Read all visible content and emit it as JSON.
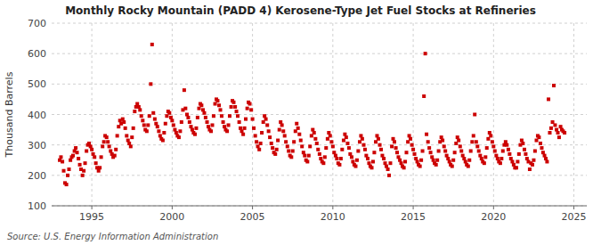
{
  "chart_data": {
    "type": "scatter",
    "title": "Monthly Rocky Mountain (PADD 4) Kerosene-Type Jet Fuel Stocks at Refineries",
    "ylabel": "Thousand Barrels",
    "source": "Source: U.S. Energy Information Administration",
    "color": "#cc0000",
    "marker": "square",
    "grid": true,
    "xlim": [
      1992.5,
      2025.8
    ],
    "ylim": [
      100,
      700
    ],
    "xticks": [
      1995,
      2000,
      2005,
      2010,
      2015,
      2020,
      2025
    ],
    "yticks": [
      100,
      200,
      300,
      400,
      500,
      600,
      700
    ],
    "x": [
      1993.0,
      1993.08,
      1993.17,
      1993.25,
      1993.33,
      1993.42,
      1993.5,
      1993.58,
      1993.67,
      1993.75,
      1993.83,
      1993.92,
      1994.0,
      1994.08,
      1994.17,
      1994.25,
      1994.33,
      1994.42,
      1994.5,
      1994.58,
      1994.67,
      1994.75,
      1994.83,
      1994.92,
      1995.0,
      1995.08,
      1995.17,
      1995.25,
      1995.33,
      1995.42,
      1995.5,
      1995.58,
      1995.67,
      1995.75,
      1995.83,
      1995.92,
      1996.0,
      1996.08,
      1996.17,
      1996.25,
      1996.33,
      1996.42,
      1996.5,
      1996.58,
      1996.67,
      1996.75,
      1996.83,
      1996.92,
      1997.0,
      1997.08,
      1997.17,
      1997.25,
      1997.33,
      1997.42,
      1997.5,
      1997.58,
      1997.67,
      1997.75,
      1997.83,
      1997.92,
      1998.0,
      1998.08,
      1998.17,
      1998.25,
      1998.33,
      1998.42,
      1998.5,
      1998.58,
      1998.67,
      1998.75,
      1998.83,
      1998.92,
      1999.0,
      1999.08,
      1999.17,
      1999.25,
      1999.33,
      1999.42,
      1999.5,
      1999.58,
      1999.67,
      1999.75,
      1999.83,
      1999.92,
      2000.0,
      2000.08,
      2000.17,
      2000.25,
      2000.33,
      2000.42,
      2000.5,
      2000.58,
      2000.67,
      2000.75,
      2000.83,
      2000.92,
      2001.0,
      2001.08,
      2001.17,
      2001.25,
      2001.33,
      2001.42,
      2001.5,
      2001.58,
      2001.67,
      2001.75,
      2001.83,
      2001.92,
      2002.0,
      2002.08,
      2002.17,
      2002.25,
      2002.33,
      2002.42,
      2002.5,
      2002.58,
      2002.67,
      2002.75,
      2002.83,
      2002.92,
      2003.0,
      2003.08,
      2003.17,
      2003.25,
      2003.33,
      2003.42,
      2003.5,
      2003.58,
      2003.67,
      2003.75,
      2003.83,
      2003.92,
      2004.0,
      2004.08,
      2004.17,
      2004.25,
      2004.33,
      2004.42,
      2004.5,
      2004.58,
      2004.67,
      2004.75,
      2004.83,
      2004.92,
      2005.0,
      2005.08,
      2005.17,
      2005.25,
      2005.33,
      2005.42,
      2005.5,
      2005.58,
      2005.67,
      2005.75,
      2005.83,
      2005.92,
      2006.0,
      2006.08,
      2006.17,
      2006.25,
      2006.33,
      2006.42,
      2006.5,
      2006.58,
      2006.67,
      2006.75,
      2006.83,
      2006.92,
      2007.0,
      2007.08,
      2007.17,
      2007.25,
      2007.33,
      2007.42,
      2007.5,
      2007.58,
      2007.67,
      2007.75,
      2007.83,
      2007.92,
      2008.0,
      2008.08,
      2008.17,
      2008.25,
      2008.33,
      2008.42,
      2008.5,
      2008.58,
      2008.67,
      2008.75,
      2008.83,
      2008.92,
      2009.0,
      2009.08,
      2009.17,
      2009.25,
      2009.33,
      2009.42,
      2009.5,
      2009.58,
      2009.67,
      2009.75,
      2009.83,
      2009.92,
      2010.0,
      2010.08,
      2010.17,
      2010.25,
      2010.33,
      2010.42,
      2010.5,
      2010.58,
      2010.67,
      2010.75,
      2010.83,
      2010.92,
      2011.0,
      2011.08,
      2011.17,
      2011.25,
      2011.33,
      2011.42,
      2011.5,
      2011.58,
      2011.67,
      2011.75,
      2011.83,
      2011.92,
      2012.0,
      2012.08,
      2012.17,
      2012.25,
      2012.33,
      2012.42,
      2012.5,
      2012.58,
      2012.67,
      2012.75,
      2012.83,
      2012.92,
      2013.0,
      2013.08,
      2013.17,
      2013.25,
      2013.33,
      2013.42,
      2013.5,
      2013.58,
      2013.67,
      2013.75,
      2013.83,
      2013.92,
      2014.0,
      2014.08,
      2014.17,
      2014.25,
      2014.33,
      2014.42,
      2014.5,
      2014.58,
      2014.67,
      2014.75,
      2014.83,
      2014.92,
      2015.0,
      2015.08,
      2015.17,
      2015.25,
      2015.33,
      2015.42,
      2015.5,
      2015.58,
      2015.67,
      2015.75,
      2015.83,
      2015.92,
      2016.0,
      2016.08,
      2016.17,
      2016.25,
      2016.33,
      2016.42,
      2016.5,
      2016.58,
      2016.67,
      2016.75,
      2016.83,
      2016.92,
      2017.0,
      2017.08,
      2017.17,
      2017.25,
      2017.33,
      2017.42,
      2017.5,
      2017.58,
      2017.67,
      2017.75,
      2017.83,
      2017.92,
      2018.0,
      2018.08,
      2018.17,
      2018.25,
      2018.33,
      2018.42,
      2018.5,
      2018.58,
      2018.67,
      2018.75,
      2018.83,
      2018.92,
      2019.0,
      2019.08,
      2019.17,
      2019.25,
      2019.33,
      2019.42,
      2019.5,
      2019.58,
      2019.67,
      2019.75,
      2019.83,
      2019.92,
      2020.0,
      2020.08,
      2020.17,
      2020.25,
      2020.33,
      2020.42,
      2020.5,
      2020.58,
      2020.67,
      2020.75,
      2020.83,
      2020.92,
      2021.0,
      2021.08,
      2021.17,
      2021.25,
      2021.33,
      2021.42,
      2021.5,
      2021.58,
      2021.67,
      2021.75,
      2021.83,
      2021.92,
      2022.0,
      2022.08,
      2022.17,
      2022.25,
      2022.33,
      2022.42,
      2022.5,
      2022.58,
      2022.67,
      2022.75,
      2022.83,
      2022.92,
      2023.0,
      2023.08,
      2023.17,
      2023.25,
      2023.33,
      2023.42,
      2023.5,
      2023.58,
      2023.67,
      2023.75,
      2023.83,
      2023.92,
      2024.0,
      2024.08,
      2024.17,
      2024.25,
      2024.33,
      2024.42
    ],
    "values": [
      250,
      260,
      245,
      215,
      175,
      170,
      200,
      220,
      250,
      260,
      265,
      280,
      290,
      275,
      255,
      235,
      220,
      200,
      215,
      240,
      280,
      300,
      305,
      295,
      285,
      270,
      260,
      240,
      225,
      215,
      225,
      260,
      295,
      310,
      330,
      325,
      310,
      295,
      280,
      270,
      260,
      265,
      285,
      330,
      360,
      380,
      370,
      385,
      375,
      355,
      330,
      315,
      305,
      295,
      325,
      355,
      410,
      425,
      435,
      425,
      415,
      395,
      380,
      365,
      350,
      345,
      365,
      395,
      500,
      630,
      405,
      385,
      370,
      360,
      345,
      330,
      320,
      315,
      340,
      370,
      395,
      410,
      405,
      390,
      380,
      365,
      350,
      340,
      330,
      325,
      345,
      375,
      415,
      480,
      420,
      400,
      390,
      375,
      360,
      350,
      340,
      335,
      355,
      390,
      420,
      435,
      430,
      415,
      405,
      390,
      375,
      360,
      350,
      345,
      365,
      395,
      435,
      450,
      445,
      430,
      415,
      395,
      375,
      360,
      350,
      345,
      365,
      395,
      425,
      445,
      440,
      425,
      410,
      395,
      375,
      355,
      345,
      335,
      355,
      385,
      420,
      440,
      435,
      415,
      385,
      355,
      330,
      310,
      295,
      285,
      305,
      340,
      375,
      395,
      385,
      365,
      345,
      325,
      305,
      290,
      275,
      270,
      285,
      315,
      350,
      375,
      365,
      345,
      330,
      310,
      295,
      280,
      265,
      260,
      280,
      310,
      345,
      370,
      355,
      335,
      315,
      295,
      275,
      265,
      250,
      245,
      265,
      295,
      330,
      350,
      340,
      320,
      305,
      285,
      270,
      255,
      245,
      240,
      260,
      290,
      320,
      340,
      330,
      310,
      295,
      275,
      265,
      255,
      240,
      235,
      255,
      285,
      315,
      335,
      325,
      305,
      290,
      270,
      260,
      245,
      235,
      230,
      250,
      280,
      310,
      330,
      320,
      300,
      285,
      265,
      255,
      240,
      230,
      225,
      245,
      275,
      310,
      330,
      320,
      300,
      285,
      265,
      255,
      240,
      230,
      220,
      200,
      240,
      295,
      320,
      310,
      290,
      275,
      260,
      250,
      240,
      230,
      225,
      245,
      275,
      310,
      330,
      320,
      300,
      285,
      270,
      255,
      245,
      235,
      230,
      250,
      280,
      460,
      600,
      335,
      310,
      290,
      275,
      260,
      250,
      240,
      235,
      250,
      280,
      310,
      325,
      315,
      295,
      280,
      265,
      255,
      245,
      235,
      230,
      250,
      275,
      305,
      325,
      315,
      295,
      280,
      265,
      255,
      245,
      235,
      230,
      250,
      280,
      310,
      330,
      400,
      310,
      295,
      280,
      265,
      255,
      245,
      240,
      260,
      290,
      320,
      340,
      330,
      310,
      295,
      280,
      265,
      255,
      245,
      240,
      255,
      280,
      300,
      310,
      300,
      285,
      270,
      255,
      245,
      235,
      225,
      225,
      245,
      270,
      300,
      315,
      305,
      285,
      270,
      255,
      245,
      220,
      240,
      235,
      250,
      280,
      315,
      330,
      325,
      305,
      290,
      275,
      265,
      255,
      245,
      450,
      340,
      355,
      375,
      495,
      365,
      350,
      340,
      325,
      360,
      350,
      345,
      340
    ]
  }
}
